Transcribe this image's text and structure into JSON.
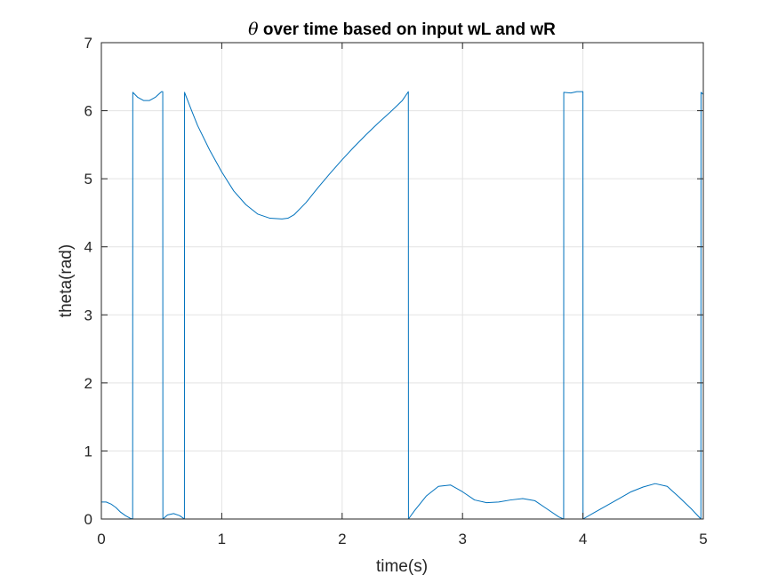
{
  "chart_data": {
    "type": "line",
    "title_symbol": "θ",
    "title_rest": " over time based on input wL and wR",
    "xlabel": "time(s)",
    "ylabel": "theta(rad)",
    "xlim": [
      0,
      5
    ],
    "ylim": [
      0,
      7
    ],
    "xticks": [
      0,
      1,
      2,
      3,
      4,
      5
    ],
    "yticks": [
      0,
      1,
      2,
      3,
      4,
      5,
      6,
      7
    ],
    "xtick_labels": [
      "0",
      "1",
      "2",
      "3",
      "4",
      "5"
    ],
    "ytick_labels": [
      "0",
      "1",
      "2",
      "3",
      "4",
      "5",
      "6",
      "7"
    ],
    "grid": true,
    "line_color": "#0072BD",
    "series": [
      {
        "x": [
          0,
          0.04,
          0.08,
          0.12,
          0.16,
          0.2,
          0.24,
          0.26,
          0.261,
          0.3,
          0.35,
          0.4,
          0.45,
          0.5,
          0.51,
          0.511,
          0.55,
          0.6,
          0.65,
          0.69,
          0.691,
          0.75,
          0.8,
          0.9,
          1.0,
          1.1,
          1.2,
          1.3,
          1.4,
          1.5,
          1.55,
          1.6,
          1.7,
          1.8,
          1.9,
          2.0,
          2.1,
          2.2,
          2.3,
          2.4,
          2.5,
          2.55,
          2.551,
          2.6,
          2.7,
          2.8,
          2.9,
          3.0,
          3.1,
          3.2,
          3.3,
          3.4,
          3.5,
          3.6,
          3.7,
          3.8,
          3.84,
          3.841,
          3.9,
          3.95,
          4.0,
          4.001,
          4.1,
          4.2,
          4.3,
          4.4,
          4.5,
          4.6,
          4.7,
          4.8,
          4.9,
          4.98,
          4.981,
          5.0
        ],
        "y": [
          0.25,
          0.25,
          0.22,
          0.17,
          0.1,
          0.05,
          0.01,
          0.0,
          6.27,
          6.2,
          6.15,
          6.15,
          6.2,
          6.28,
          6.28,
          0.0,
          0.06,
          0.08,
          0.05,
          0.0,
          6.27,
          6.0,
          5.78,
          5.42,
          5.1,
          4.82,
          4.62,
          4.48,
          4.42,
          4.41,
          4.42,
          4.47,
          4.65,
          4.87,
          5.08,
          5.28,
          5.47,
          5.65,
          5.82,
          5.98,
          6.15,
          6.28,
          0.0,
          0.12,
          0.34,
          0.48,
          0.5,
          0.4,
          0.28,
          0.24,
          0.25,
          0.28,
          0.3,
          0.27,
          0.15,
          0.03,
          0.0,
          6.27,
          6.26,
          6.28,
          6.28,
          0.0,
          0.1,
          0.2,
          0.3,
          0.4,
          0.47,
          0.52,
          0.48,
          0.32,
          0.15,
          0.0,
          6.27,
          6.24
        ]
      }
    ]
  }
}
